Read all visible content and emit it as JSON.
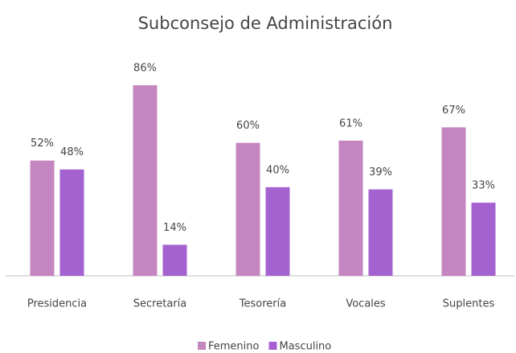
{
  "chart_data": {
    "type": "bar",
    "title": "Subconsejo de Administración",
    "categories": [
      "Presidencia",
      "Secretaría",
      "Tesorería",
      "Vocales",
      "Suplentes"
    ],
    "series": [
      {
        "name": "Femenino",
        "color": "#c585c0",
        "values": [
          52,
          86,
          60,
          61,
          67
        ],
        "value_labels": [
          "52%",
          "86%",
          "60%",
          "61%",
          "67%"
        ]
      },
      {
        "name": "Masculino",
        "color": "#a462d1",
        "values": [
          48,
          14,
          40,
          39,
          33
        ],
        "value_labels": [
          "48%",
          "14%",
          "40%",
          "39%",
          "33%"
        ]
      }
    ],
    "legend": "bottom"
  }
}
